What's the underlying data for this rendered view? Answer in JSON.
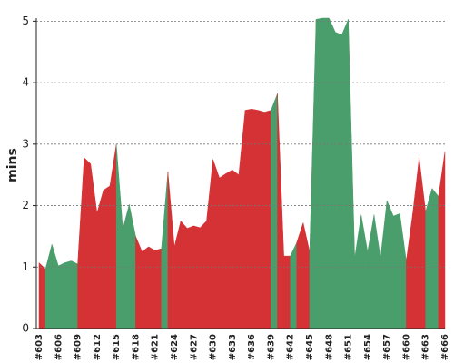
{
  "chart_data": {
    "type": "area",
    "ylabel": "mins",
    "categories": [
      "#603",
      null,
      null,
      "#606",
      null,
      null,
      "#609",
      null,
      null,
      "#612",
      null,
      null,
      "#615",
      null,
      null,
      "#618",
      null,
      null,
      "#621",
      null,
      null,
      "#624",
      null,
      null,
      "#627",
      null,
      null,
      "#630",
      null,
      null,
      "#633",
      null,
      null,
      "#636",
      null,
      null,
      "#639",
      null,
      null,
      "#642",
      null,
      null,
      "#645",
      null,
      null,
      "#648",
      null,
      null,
      "#651",
      null,
      null,
      "#654",
      null,
      null,
      "#657",
      null,
      null,
      "#660",
      null,
      null,
      "#663",
      null,
      null,
      "#666"
    ],
    "values": [
      1.07,
      0.97,
      1.37,
      1.02,
      1.07,
      1.1,
      1.05,
      2.78,
      2.68,
      1.88,
      2.25,
      2.32,
      3.0,
      1.62,
      2.02,
      1.5,
      1.25,
      1.33,
      1.27,
      1.3,
      2.55,
      1.33,
      1.75,
      1.63,
      1.67,
      1.64,
      1.75,
      2.75,
      2.45,
      2.52,
      2.58,
      2.5,
      3.55,
      3.57,
      3.55,
      3.52,
      3.55,
      3.82,
      1.18,
      1.18,
      1.4,
      1.72,
      1.25,
      5.03,
      5.05,
      5.05,
      4.82,
      4.78,
      5.03,
      1.15,
      1.85,
      1.25,
      1.85,
      1.15,
      2.08,
      1.83,
      1.87,
      1.1,
      1.87,
      2.78,
      1.9,
      2.28,
      2.15,
      2.88
    ],
    "colors": [
      "#d43234",
      "#d43234",
      "#4a9e6c",
      "#4a9e6c",
      "#4a9e6c",
      "#4a9e6c",
      "#4a9e6c",
      "#d43234",
      "#d43234",
      "#d43234",
      "#d43234",
      "#d43234",
      "#d43234",
      "#4a9e6c",
      "#4a9e6c",
      "#4a9e6c",
      "#d43234",
      "#d43234",
      "#d43234",
      "#d43234",
      "#4a9e6c",
      "#d43234",
      "#d43234",
      "#d43234",
      "#d43234",
      "#d43234",
      "#d43234",
      "#d43234",
      "#d43234",
      "#d43234",
      "#d43234",
      "#d43234",
      "#d43234",
      "#d43234",
      "#d43234",
      "#d43234",
      "#d43234",
      "#4a9e6c",
      "#d43234",
      "#d43234",
      "#4a9e6c",
      "#d43234",
      "#d43234",
      "#4a9e6c",
      "#4a9e6c",
      "#4a9e6c",
      "#4a9e6c",
      "#4a9e6c",
      "#4a9e6c",
      "#4a9e6c",
      "#4a9e6c",
      "#4a9e6c",
      "#4a9e6c",
      "#4a9e6c",
      "#4a9e6c",
      "#4a9e6c",
      "#4a9e6c",
      "#4a9e6c",
      "#d43234",
      "#d43234",
      "#d43234",
      "#4a9e6c",
      "#4a9e6c",
      "#d43234"
    ],
    "ylim": [
      0,
      5.05
    ],
    "yticks": [
      0,
      1,
      2,
      3,
      4,
      5
    ],
    "grid": true
  }
}
